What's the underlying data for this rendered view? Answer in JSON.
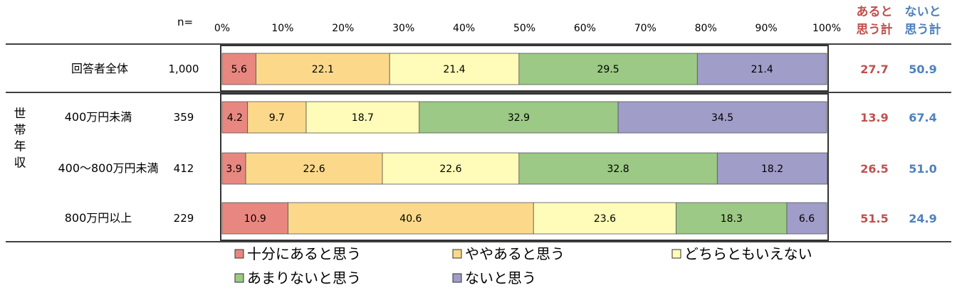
{
  "chart_data": {
    "type": "bar",
    "orientation": "horizontal",
    "stacked": true,
    "percent": true,
    "n_header": "n=",
    "x_ticks": [
      "0%",
      "10%",
      "20%",
      "30%",
      "40%",
      "50%",
      "60%",
      "70%",
      "80%",
      "90%",
      "100%"
    ],
    "xlim": [
      0,
      100
    ],
    "group_label": "世帯年収",
    "categories": [
      "回答者全体",
      "400万円未満",
      "400～800万円未満",
      "800万円以上"
    ],
    "n": [
      "1,000",
      "359",
      "412",
      "229"
    ],
    "series": [
      {
        "name": "十分にあると思う",
        "color": "#E8877F",
        "values": [
          5.6,
          4.2,
          3.9,
          10.9
        ],
        "labels": [
          "5.6",
          "4.2",
          "3.9",
          "10.9"
        ]
      },
      {
        "name": "ややあると思う",
        "color": "#FCD98A",
        "values": [
          22.1,
          9.7,
          22.6,
          40.6
        ],
        "labels": [
          "22.1",
          "9.7",
          "22.6",
          "40.6"
        ]
      },
      {
        "name": "どちらともいえない",
        "color": "#FFFBB8",
        "values": [
          21.4,
          18.7,
          22.6,
          23.6
        ],
        "labels": [
          "21.4",
          "18.7",
          "22.6",
          "23.6"
        ]
      },
      {
        "name": "あまりないと思う",
        "color": "#9CC985",
        "values": [
          29.5,
          32.9,
          32.8,
          18.3
        ],
        "labels": [
          "29.5",
          "32.9",
          "32.8",
          "18.3"
        ]
      },
      {
        "name": "ないと思う",
        "color": "#A09DC9",
        "values": [
          21.4,
          34.5,
          18.2,
          6.6
        ],
        "labels": [
          "21.4",
          "34.5",
          "18.2",
          "6.6"
        ]
      }
    ],
    "totals": [
      {
        "title_line1": "あると",
        "title_line2": "思う計",
        "color": "#C0504D",
        "values": [
          "27.7",
          "13.9",
          "26.5",
          "51.5"
        ]
      },
      {
        "title_line1": "ないと",
        "title_line2": "思う計",
        "color": "#4F81BD",
        "values": [
          "50.9",
          "67.4",
          "51.0",
          "24.9"
        ]
      }
    ],
    "legend_placement": "bottom",
    "grid": false
  }
}
